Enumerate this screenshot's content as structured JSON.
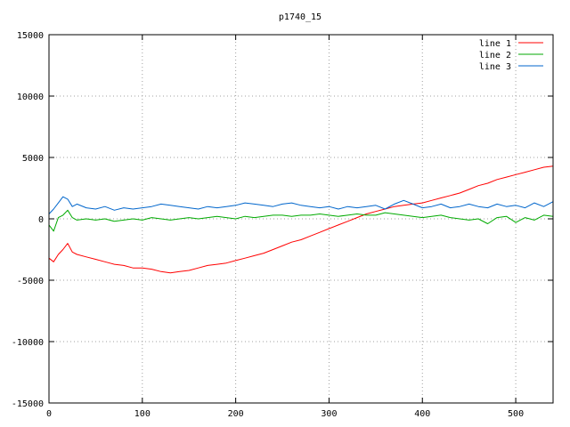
{
  "chart_data": {
    "type": "line",
    "title": "p1740_15",
    "xlabel": "",
    "ylabel": "",
    "xlim": [
      0,
      540
    ],
    "ylim": [
      -15000,
      15000
    ],
    "xticks": [
      0,
      100,
      200,
      300,
      400,
      500
    ],
    "yticks": [
      -15000,
      -10000,
      -5000,
      0,
      5000,
      10000,
      15000
    ],
    "grid": true,
    "legend_position": "top-right",
    "x": [
      0,
      5,
      10,
      15,
      20,
      25,
      30,
      40,
      50,
      60,
      70,
      80,
      90,
      100,
      110,
      120,
      130,
      140,
      150,
      160,
      170,
      180,
      190,
      200,
      210,
      220,
      230,
      240,
      250,
      260,
      270,
      280,
      290,
      300,
      310,
      320,
      330,
      340,
      350,
      360,
      370,
      380,
      390,
      400,
      410,
      420,
      430,
      440,
      450,
      460,
      470,
      480,
      490,
      500,
      510,
      520,
      530,
      540
    ],
    "series": [
      {
        "name": "line 1",
        "color": "#ff0000",
        "values": [
          -3200,
          -3500,
          -2900,
          -2500,
          -2000,
          -2700,
          -2900,
          -3100,
          -3300,
          -3500,
          -3700,
          -3800,
          -4000,
          -4000,
          -4100,
          -4300,
          -4400,
          -4300,
          -4200,
          -4000,
          -3800,
          -3700,
          -3600,
          -3400,
          -3200,
          -3000,
          -2800,
          -2500,
          -2200,
          -1900,
          -1700,
          -1400,
          -1100,
          -800,
          -500,
          -200,
          100,
          400,
          600,
          800,
          1000,
          1100,
          1200,
          1300,
          1500,
          1700,
          1900,
          2100,
          2400,
          2700,
          2900,
          3200,
          3400,
          3600,
          3800,
          4000,
          4200,
          4300
        ]
      },
      {
        "name": "line 2",
        "color": "#00aa00",
        "values": [
          -500,
          -1000,
          100,
          300,
          700,
          100,
          -100,
          0,
          -100,
          0,
          -200,
          -100,
          0,
          -100,
          100,
          0,
          -100,
          0,
          100,
          0,
          100,
          200,
          100,
          0,
          200,
          100,
          200,
          300,
          300,
          200,
          300,
          300,
          400,
          300,
          200,
          300,
          400,
          300,
          300,
          500,
          400,
          300,
          200,
          100,
          200,
          300,
          100,
          0,
          -100,
          0,
          -400,
          100,
          200,
          -300,
          100,
          -100,
          300,
          200
        ]
      },
      {
        "name": "line 3",
        "color": "#0066cc",
        "values": [
          400,
          800,
          1300,
          1800,
          1600,
          1000,
          1200,
          900,
          800,
          1000,
          700,
          900,
          800,
          900,
          1000,
          1200,
          1100,
          1000,
          900,
          800,
          1000,
          900,
          1000,
          1100,
          1300,
          1200,
          1100,
          1000,
          1200,
          1300,
          1100,
          1000,
          900,
          1000,
          800,
          1000,
          900,
          1000,
          1100,
          800,
          1200,
          1500,
          1200,
          900,
          1000,
          1200,
          900,
          1000,
          1200,
          1000,
          900,
          1200,
          1000,
          1100,
          900,
          1300,
          1000,
          1400
        ]
      }
    ]
  }
}
